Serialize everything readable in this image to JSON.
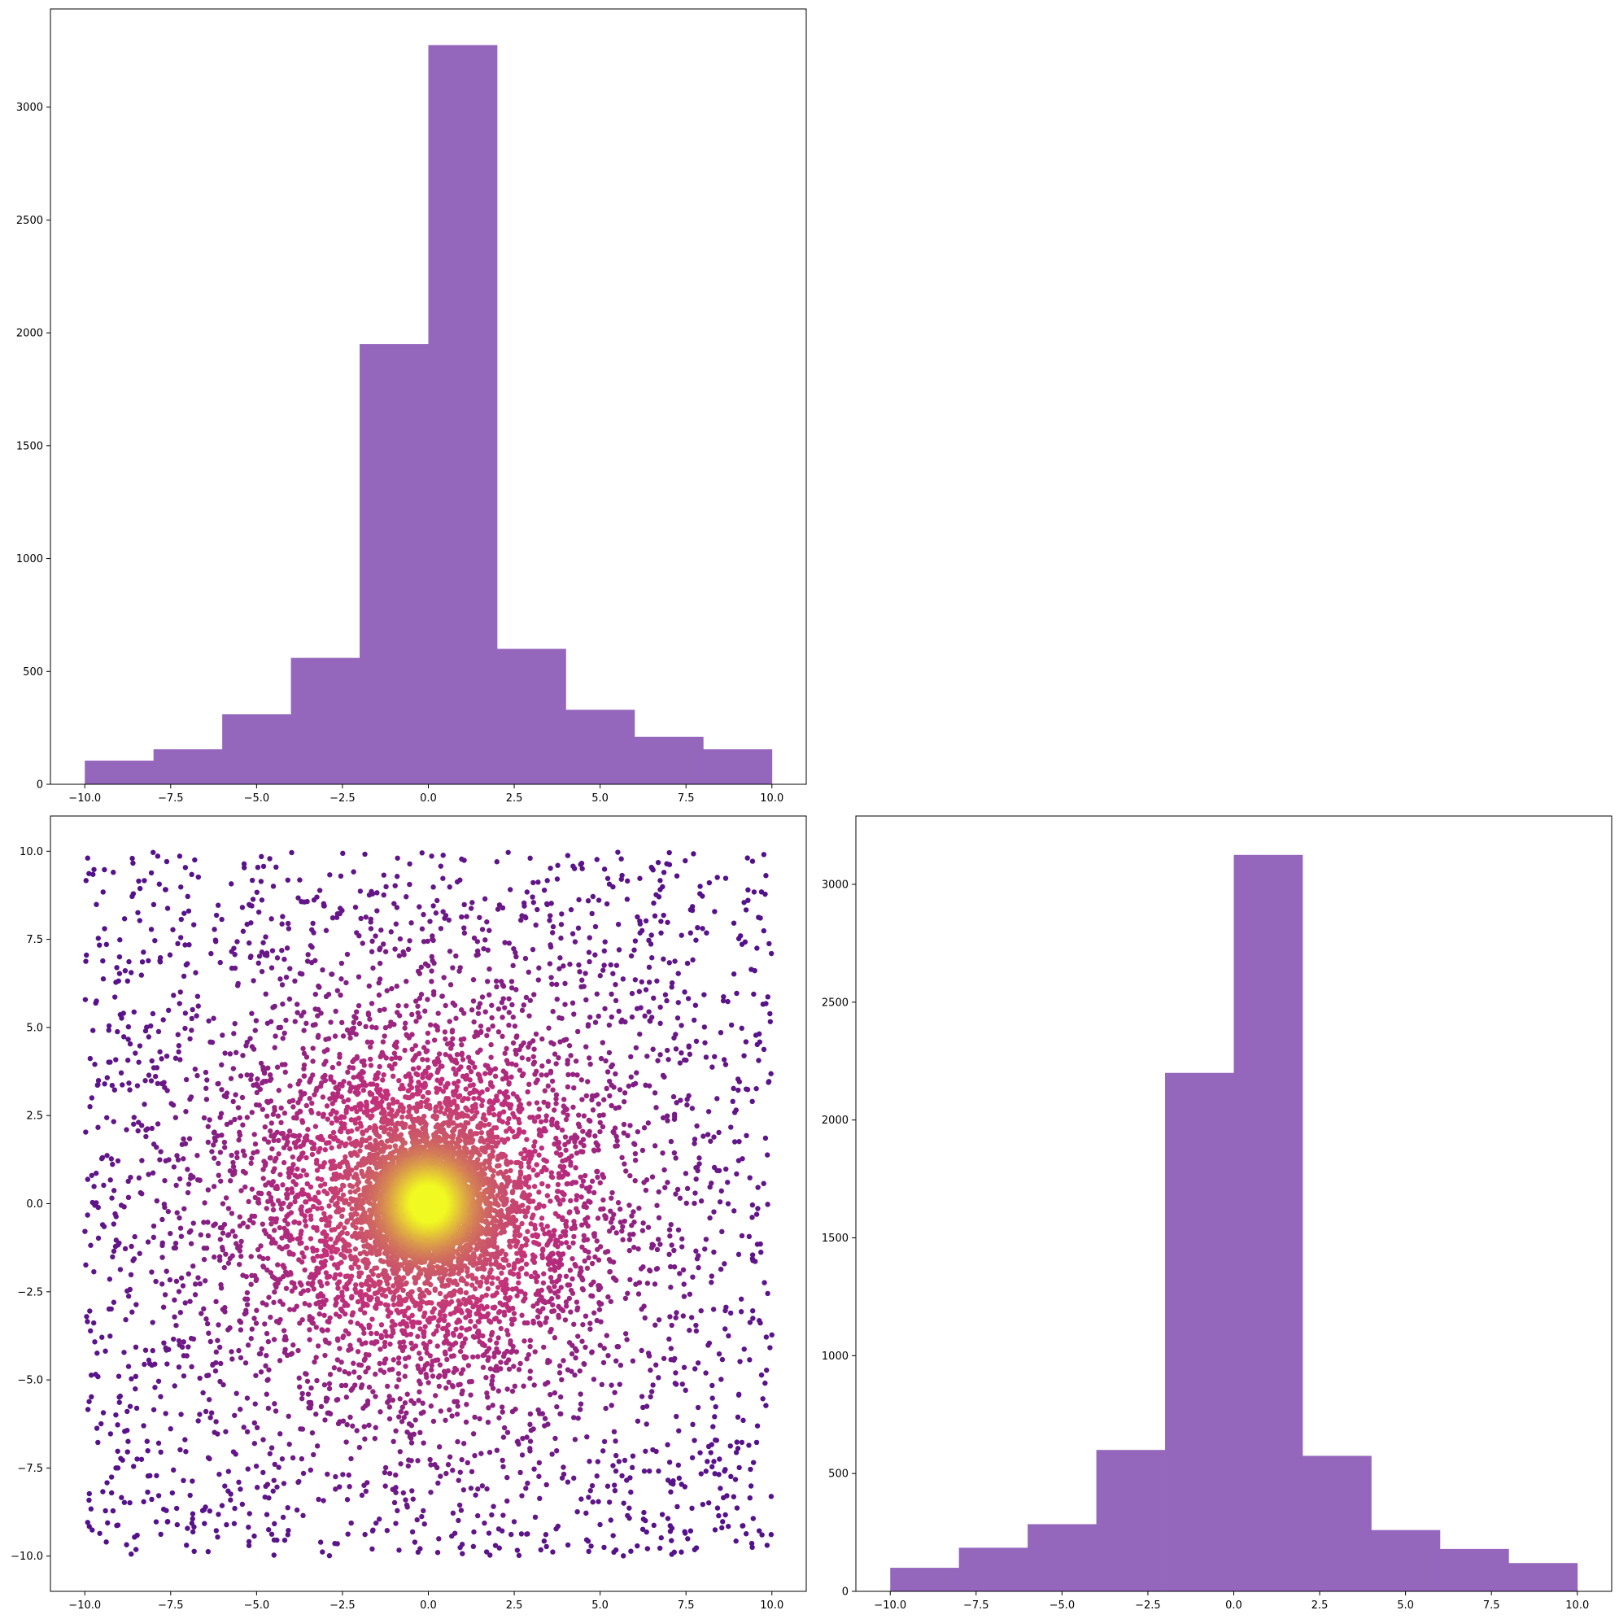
{
  "colors": {
    "bar": "#9467bd",
    "scatter_low": "#3b0a8f",
    "scatter_mid": "#c2307a",
    "scatter_high": "#f0f921"
  },
  "chart_data": [
    {
      "panel": "top-left",
      "type": "bar",
      "title": "",
      "xlabel": "",
      "ylabel": "",
      "bin_edges": [
        -10,
        -8,
        -6,
        -4,
        -2,
        0,
        2,
        4,
        6,
        8,
        10
      ],
      "values": [
        105,
        155,
        310,
        560,
        1950,
        3275,
        600,
        330,
        210,
        155
      ],
      "xlim": [
        -11,
        11
      ],
      "ylim": [
        0,
        3435
      ],
      "xticks": [
        -10.0,
        -7.5,
        -5.0,
        -2.5,
        0.0,
        2.5,
        5.0,
        7.5,
        10.0
      ],
      "xtick_labels": [
        "−10.0",
        "−7.5",
        "−5.0",
        "−2.5",
        "0.0",
        "2.5",
        "5.0",
        "7.5",
        "10.0"
      ],
      "yticks": [
        0,
        500,
        1000,
        1500,
        2000,
        2500,
        3000
      ],
      "ytick_labels": [
        "0",
        "500",
        "1000",
        "1500",
        "2000",
        "2500",
        "3000"
      ]
    },
    {
      "panel": "bottom-left",
      "type": "scatter",
      "title": "",
      "xlabel": "",
      "ylabel": "",
      "color_by": "density",
      "point_count": 10000,
      "distribution": "dense center at (0, 0), sparse uniform spread out to ±10 on both axes",
      "xlim": [
        -11,
        11
      ],
      "ylim": [
        -11,
        11
      ],
      "xticks": [
        -10.0,
        -7.5,
        -5.0,
        -2.5,
        0.0,
        2.5,
        5.0,
        7.5,
        10.0
      ],
      "xtick_labels": [
        "−10.0",
        "−7.5",
        "−5.0",
        "−2.5",
        "0.0",
        "2.5",
        "5.0",
        "7.5",
        "10.0"
      ],
      "yticks": [
        -10.0,
        -7.5,
        -5.0,
        -2.5,
        0.0,
        2.5,
        5.0,
        7.5,
        10.0
      ],
      "ytick_labels": [
        "−10.0",
        "−7.5",
        "−5.0",
        "−2.5",
        "0.0",
        "2.5",
        "5.0",
        "7.5",
        "10.0"
      ]
    },
    {
      "panel": "bottom-right",
      "type": "bar",
      "title": "",
      "xlabel": "",
      "ylabel": "",
      "bin_edges": [
        -10,
        -8,
        -6,
        -4,
        -2,
        0,
        2,
        4,
        6,
        8,
        10
      ],
      "values": [
        100,
        185,
        285,
        600,
        2200,
        3125,
        575,
        260,
        180,
        120
      ],
      "xlim": [
        -11,
        11
      ],
      "ylim": [
        0,
        3290
      ],
      "xticks": [
        -10.0,
        -7.5,
        -5.0,
        -2.5,
        0.0,
        2.5,
        5.0,
        7.5,
        10.0
      ],
      "xtick_labels": [
        "−10.0",
        "−7.5",
        "−5.0",
        "−2.5",
        "0.0",
        "2.5",
        "5.0",
        "7.5",
        "10.0"
      ],
      "yticks": [
        0,
        500,
        1000,
        1500,
        2000,
        2500,
        3000
      ],
      "ytick_labels": [
        "0",
        "500",
        "1000",
        "1500",
        "2000",
        "2500",
        "3000"
      ]
    }
  ]
}
